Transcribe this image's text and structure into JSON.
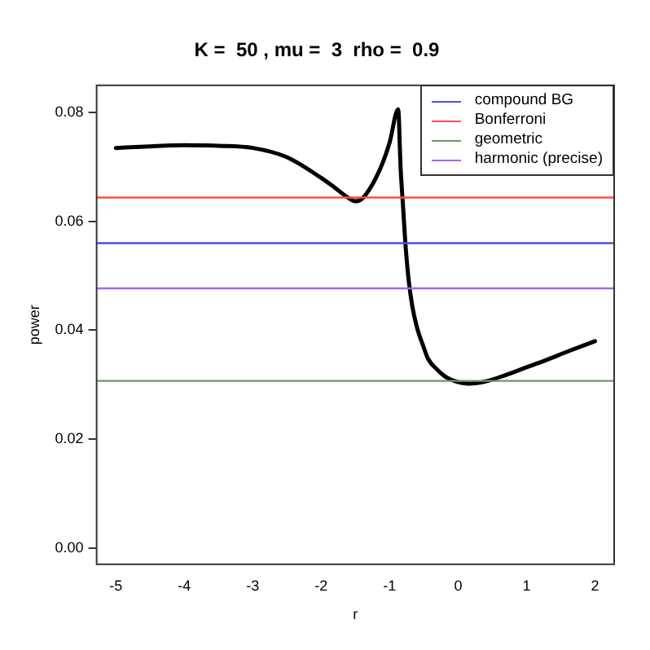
{
  "chart_data": {
    "type": "line",
    "title": "K =  50 , mu =  3  rho =  0.9",
    "xlabel": "r",
    "ylabel": "power",
    "xlim": [
      -5.28,
      2.28
    ],
    "xticks": [
      -5,
      -4,
      -3,
      -2,
      -1,
      0,
      1,
      2
    ],
    "ylim": [
      -0.003,
      0.085
    ],
    "yticks": [
      {
        "value": 0,
        "label": "0.00"
      },
      0.02,
      0.04,
      0.06,
      0.08
    ],
    "series": [
      {
        "color": "#000000",
        "x": [
          -5,
          -4.5,
          -4,
          -3.5,
          -3,
          -2.5,
          -2,
          -1.8,
          -1.6,
          -1.5,
          -1.4,
          -1.3,
          -1.2,
          -1.1,
          -1,
          -0.875,
          -0.84,
          -0.8,
          -0.77,
          -0.72,
          -0.67,
          -0.6,
          -0.5,
          -0.44,
          -0.3,
          -0.2,
          -0.1,
          0,
          0.17,
          0.4,
          0.7,
          1,
          1.3,
          1.6,
          2
        ],
        "values": [
          0.0735,
          0.0738,
          0.074,
          0.0739,
          0.0735,
          0.0718,
          0.068,
          0.0662,
          0.0643,
          0.0637,
          0.0642,
          0.0658,
          0.068,
          0.0708,
          0.0745,
          0.0806,
          0.07,
          0.062,
          0.056,
          0.049,
          0.0445,
          0.0405,
          0.0368,
          0.0348,
          0.0327,
          0.0316,
          0.0309,
          0.0305,
          0.0302,
          0.0306,
          0.0318,
          0.0332,
          0.0346,
          0.0361,
          0.038
        ]
      }
    ],
    "ref_lines": [
      {
        "axis": "y",
        "value": 0.056,
        "label": "compound BG",
        "color": "#4f4fe0"
      },
      {
        "axis": "y",
        "value": 0.0644,
        "label": "Bonferroni",
        "color": "#ff4a4a"
      },
      {
        "axis": "y",
        "value": 0.0307,
        "label": "geometric",
        "color": "#5fa05f"
      },
      {
        "axis": "y",
        "value": 0.0477,
        "label": "harmonic (precise)",
        "color": "#b060f0"
      }
    ],
    "legend": "top right",
    "grid": false
  }
}
